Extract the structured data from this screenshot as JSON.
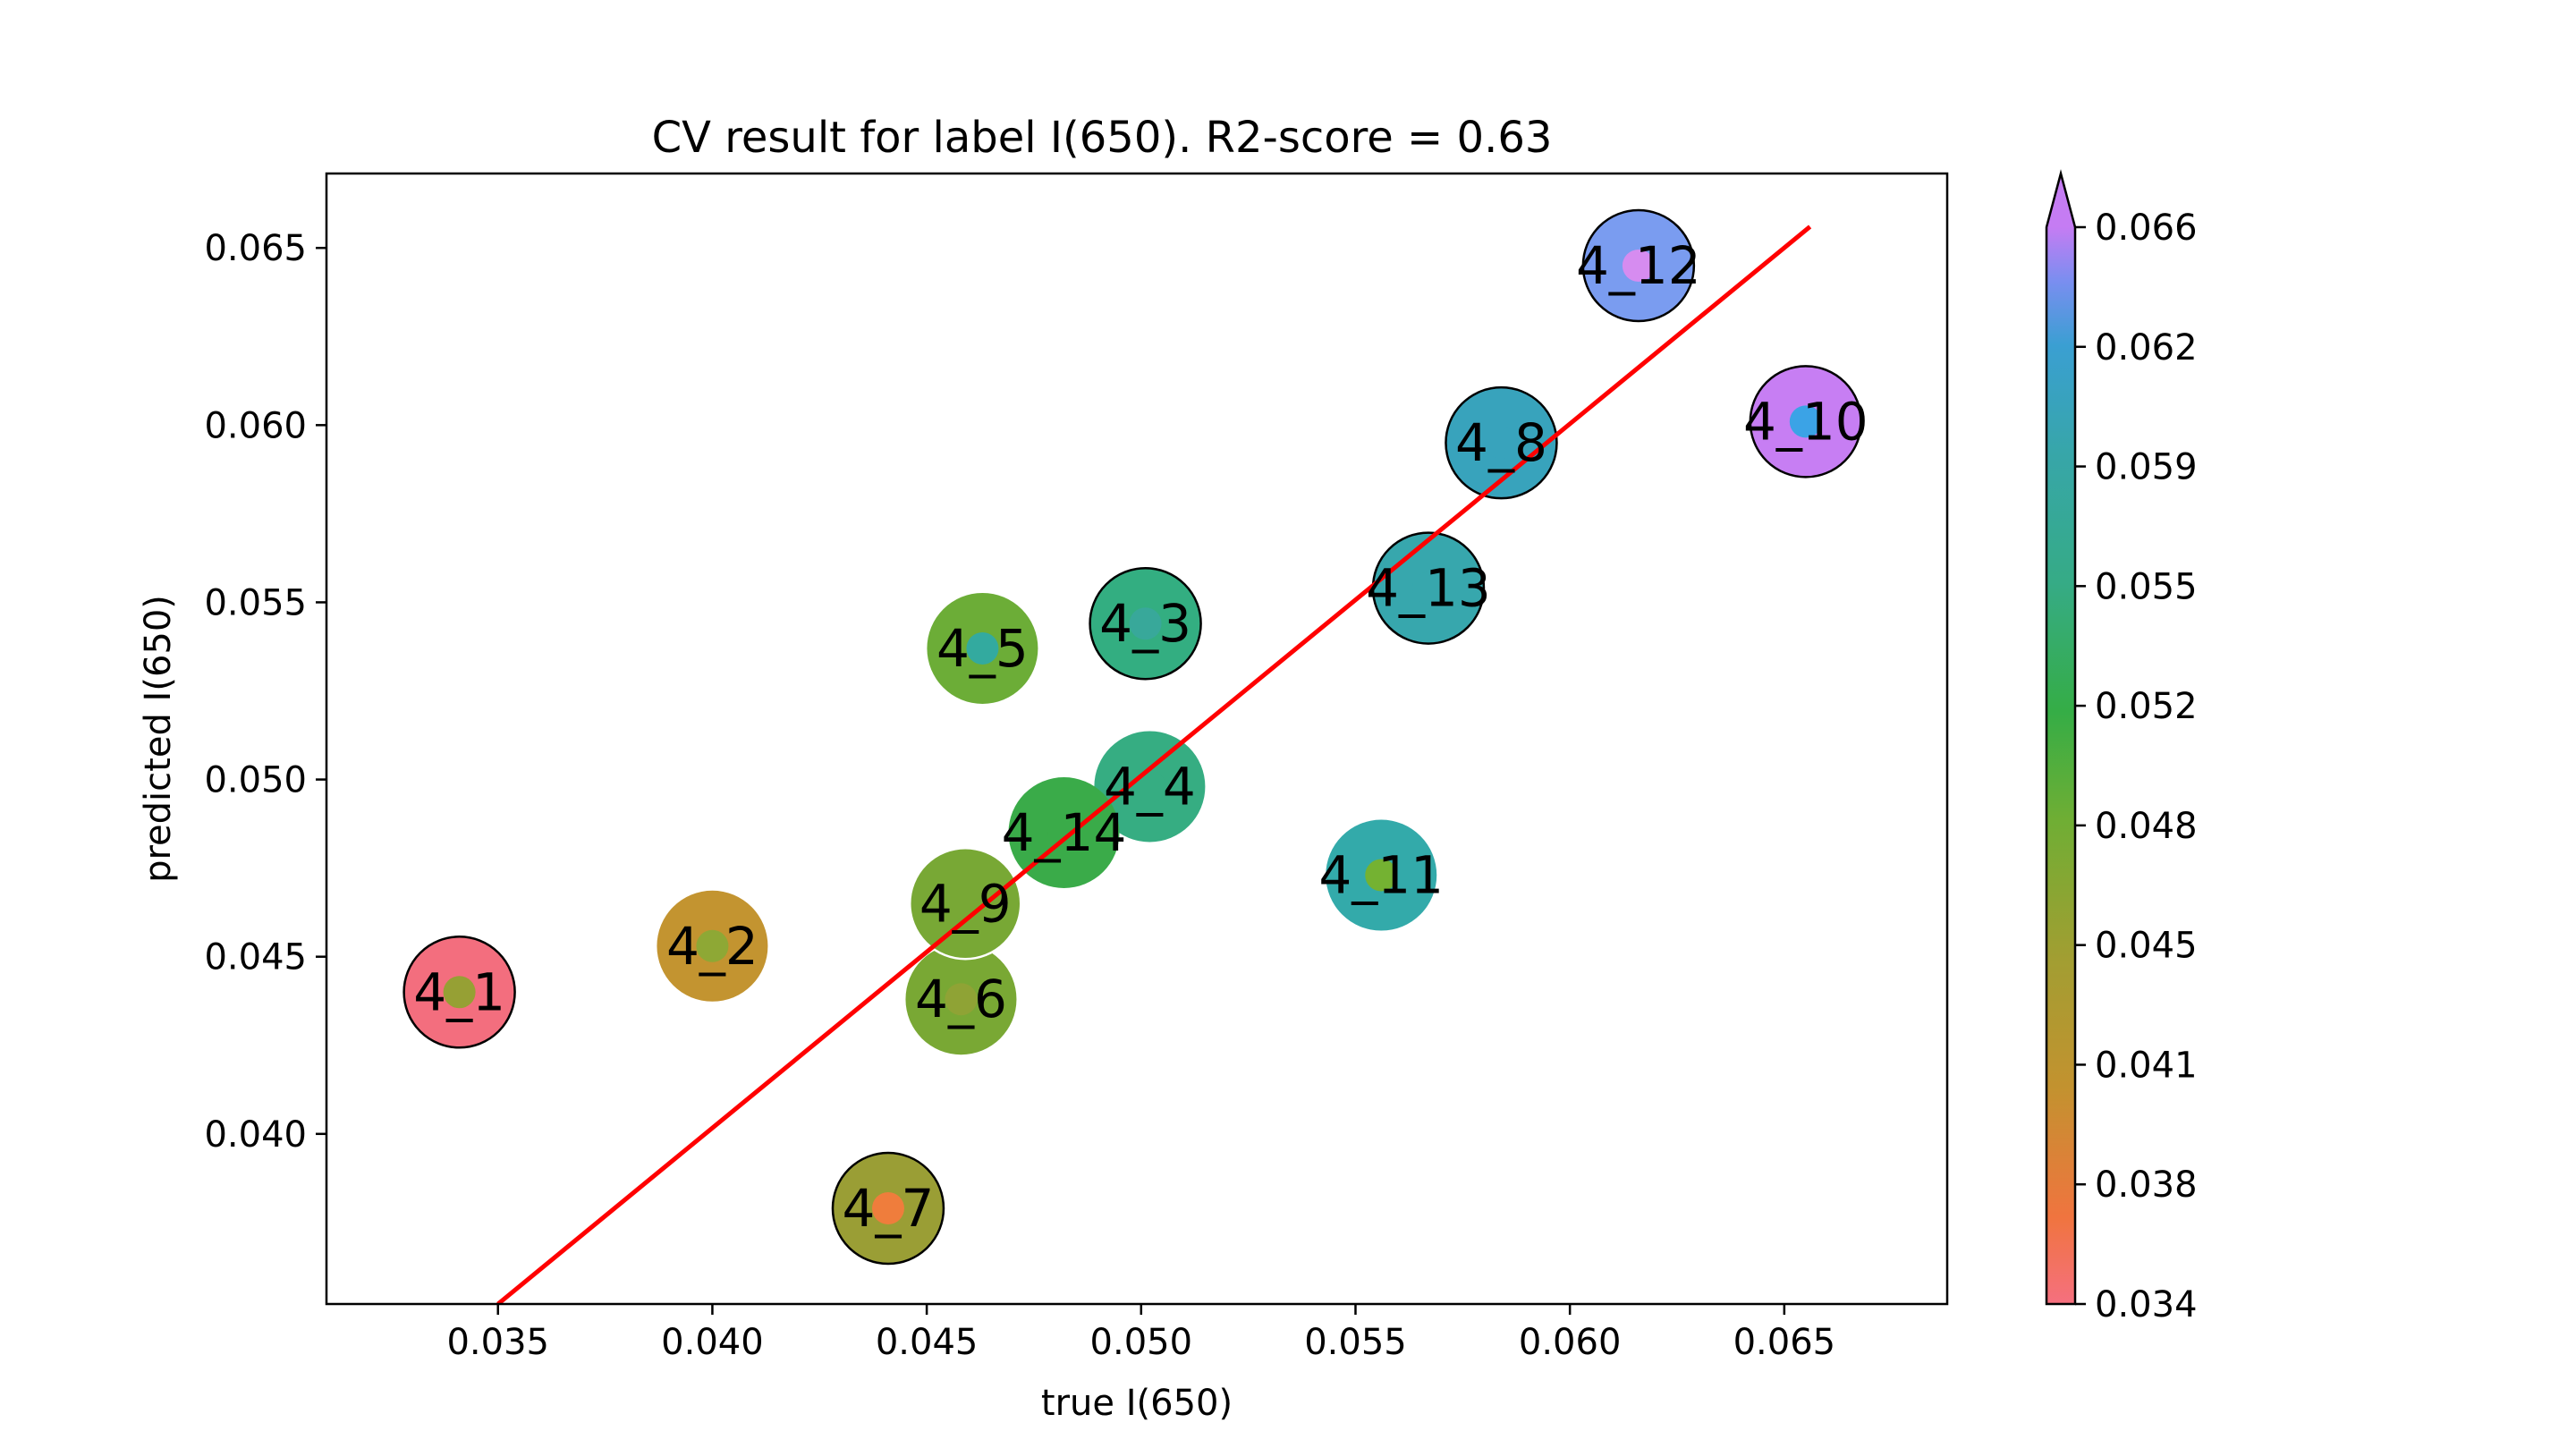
{
  "chart_data": {
    "type": "scatter",
    "title": "CV result for label I(650). R2-score = 0.63",
    "xlabel": "true I(650)",
    "ylabel": "predicted I(650)",
    "xlim": [
      0.031,
      0.0688
    ],
    "ylim": [
      0.0352,
      0.0671
    ],
    "xticks": [
      "0.035",
      "0.040",
      "0.045",
      "0.050",
      "0.055",
      "0.060",
      "0.065"
    ],
    "yticks": [
      "0.040",
      "0.045",
      "0.050",
      "0.055",
      "0.060",
      "0.065"
    ],
    "grid": false,
    "fit_line": {
      "color": "#ff0000",
      "x": [
        0.035,
        0.0656
      ],
      "y": [
        0.0352,
        0.0656
      ]
    },
    "colorbar": {
      "ticks": [
        "0.034",
        "0.038",
        "0.041",
        "0.045",
        "0.048",
        "0.052",
        "0.055",
        "0.059",
        "0.062",
        "0.066"
      ],
      "range": [
        0.034,
        0.066
      ],
      "extend": "max",
      "colormap": "husl"
    },
    "points": [
      {
        "label": "4_1",
        "x": 0.0341,
        "y": 0.044,
        "outer_color": "#f36e7e",
        "inner_color": "#96a034",
        "outline": "#000000"
      },
      {
        "label": "4_2",
        "x": 0.04,
        "y": 0.0453,
        "outer_color": "#c39430",
        "inner_color": "#8ea835",
        "outline": "none"
      },
      {
        "label": "4_3",
        "x": 0.0501,
        "y": 0.0544,
        "outer_color": "#33ae81",
        "inner_color": "#38a89a",
        "outline": "#000000"
      },
      {
        "label": "4_4",
        "x": 0.0502,
        "y": 0.0498,
        "outer_color": "#36ad82",
        "inner_color": "#36ad82",
        "outline": "none"
      },
      {
        "label": "4_5",
        "x": 0.0463,
        "y": 0.0537,
        "outer_color": "#6cad37",
        "inner_color": "#33aa9f",
        "outline": "none"
      },
      {
        "label": "4_6",
        "x": 0.0458,
        "y": 0.0438,
        "outer_color": "#79a834",
        "inner_color": "#8fa335",
        "outline": "none"
      },
      {
        "label": "4_7",
        "x": 0.0441,
        "y": 0.0379,
        "outer_color": "#9a9e35",
        "inner_color": "#ef7d3c",
        "outline": "#000000"
      },
      {
        "label": "4_8",
        "x": 0.0584,
        "y": 0.0595,
        "outer_color": "#38a3bc",
        "inner_color": "#38a3bc",
        "outline": "#000000"
      },
      {
        "label": "4_9",
        "x": 0.0459,
        "y": 0.0465,
        "outer_color": "#78a835",
        "inner_color": "#78a835",
        "outline": "#ffffff"
      },
      {
        "label": "4_10",
        "x": 0.0655,
        "y": 0.0601,
        "outer_color": "#c77ef3",
        "inner_color": "#3ba3e6",
        "outline": "#000000"
      },
      {
        "label": "4_11",
        "x": 0.0556,
        "y": 0.0473,
        "outer_color": "#33aaaa",
        "inner_color": "#74b232",
        "outline": "none"
      },
      {
        "label": "4_12",
        "x": 0.0616,
        "y": 0.0645,
        "outer_color": "#7a9cf0",
        "inner_color": "#d68cf0",
        "outline": "#000000"
      },
      {
        "label": "4_13",
        "x": 0.0567,
        "y": 0.0554,
        "outer_color": "#37a7ad",
        "inner_color": "#37a7ad",
        "outline": "#000000"
      },
      {
        "label": "4_14",
        "x": 0.0482,
        "y": 0.0485,
        "outer_color": "#3aab49",
        "inner_color": "#3aab49",
        "outline": "none"
      }
    ]
  }
}
